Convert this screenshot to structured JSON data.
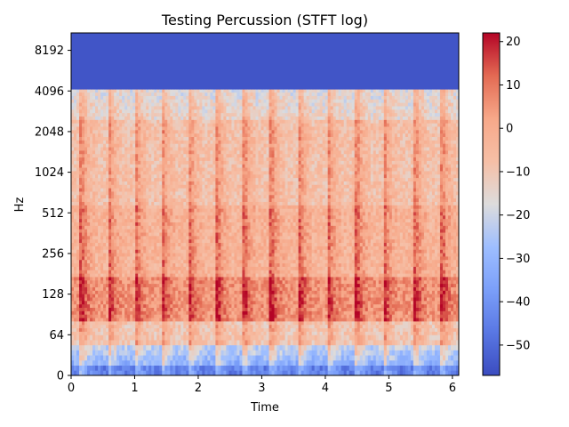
{
  "chart_data": {
    "type": "heatmap",
    "title": "Testing Percussion (STFT log)",
    "xlabel": "Time",
    "ylabel": "Hz",
    "x_range": [
      0,
      6.1
    ],
    "x_ticks": [
      0,
      1,
      2,
      3,
      4,
      5,
      6
    ],
    "y_scale": "symlog",
    "y_ticks": [
      0,
      64,
      128,
      256,
      512,
      1024,
      2048,
      4096,
      8192
    ],
    "y_range_hz": [
      0,
      11025
    ],
    "colorbar": {
      "colormap": "coolwarm",
      "range": [
        -57,
        22
      ],
      "ticks": [
        20,
        10,
        0,
        -10,
        -20,
        -30,
        -40,
        -50
      ],
      "tick_labels": [
        "20",
        "10",
        "0",
        "−10",
        "−20",
        "−30",
        "−40",
        "−50"
      ]
    },
    "onsets_s": [
      0.17,
      0.6,
      1.02,
      1.44,
      1.87,
      2.3,
      2.73,
      3.16,
      3.6,
      4.05,
      4.5,
      4.93,
      5.42,
      5.85
    ],
    "spectral_cutoff_hz": 4200,
    "background_db": -55,
    "grid": false
  }
}
